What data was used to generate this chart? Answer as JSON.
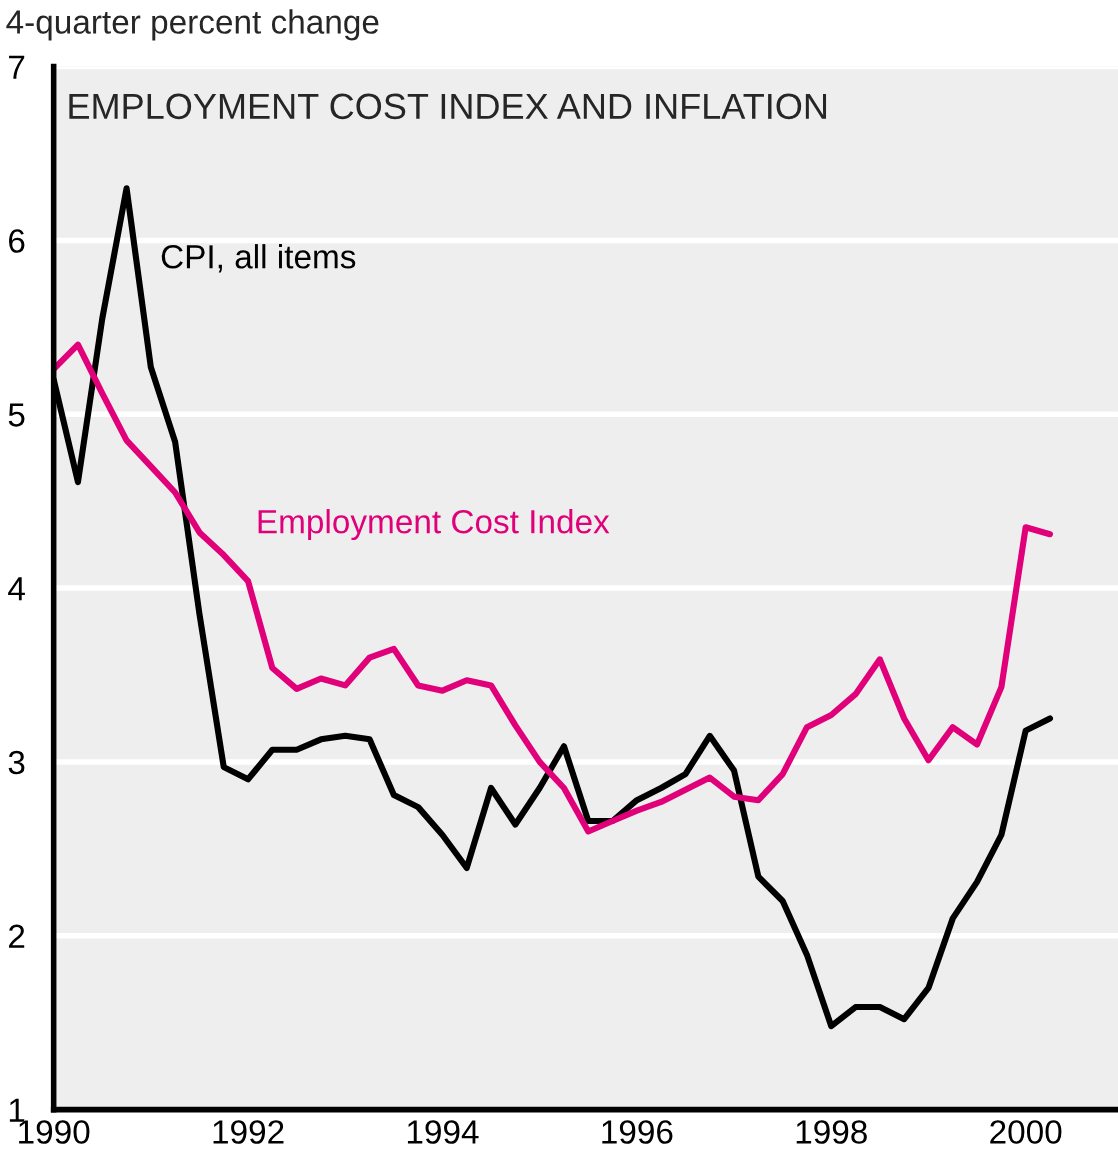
{
  "chart_data": {
    "type": "line",
    "title": "EMPLOYMENT COST INDEX AND INFLATION",
    "ylabel": "4-quarter percent change",
    "x": [
      1990,
      1990.25,
      1990.5,
      1990.75,
      1991,
      1991.25,
      1991.5,
      1991.75,
      1992,
      1992.25,
      1992.5,
      1992.75,
      1993,
      1993.25,
      1993.5,
      1993.75,
      1994,
      1994.25,
      1994.5,
      1994.75,
      1995,
      1995.25,
      1995.5,
      1995.75,
      1996,
      1996.25,
      1996.5,
      1996.75,
      1997,
      1997.25,
      1997.5,
      1997.75,
      1998,
      1998.25,
      1998.5,
      1998.75,
      1999,
      1999.25,
      1999.5,
      1999.75,
      2000,
      2000.25
    ],
    "series": [
      {
        "name": "CPI, all items",
        "color": "#000000",
        "values": [
          5.2,
          4.61,
          5.55,
          6.3,
          5.27,
          4.84,
          3.85,
          2.97,
          2.9,
          3.07,
          3.07,
          3.13,
          3.15,
          3.13,
          2.81,
          2.74,
          2.58,
          2.39,
          2.85,
          2.64,
          2.85,
          3.09,
          2.66,
          2.66,
          2.78,
          2.85,
          2.93,
          3.15,
          2.95,
          2.34,
          2.2,
          1.89,
          1.48,
          1.59,
          1.59,
          1.52,
          1.7,
          2.1,
          2.31,
          2.58,
          3.18,
          3.25
        ]
      },
      {
        "name": "Employment Cost Index",
        "color": "#e0007a",
        "values": [
          5.26,
          5.4,
          5.12,
          4.85,
          4.7,
          4.55,
          4.32,
          4.19,
          4.04,
          3.54,
          3.42,
          3.48,
          3.44,
          3.6,
          3.65,
          3.44,
          3.41,
          3.47,
          3.44,
          3.21,
          3.0,
          2.85,
          2.6,
          2.66,
          2.72,
          2.77,
          2.84,
          2.91,
          2.8,
          2.78,
          2.93,
          3.2,
          3.27,
          3.39,
          3.59,
          3.25,
          3.01,
          3.2,
          3.1,
          3.43,
          4.35,
          4.31
        ]
      }
    ],
    "xlim": [
      1990,
      2000.95
    ],
    "xticks": [
      1990,
      1992,
      1994,
      1996,
      1998,
      2000
    ],
    "ylim": [
      1,
      7
    ],
    "yticks": [
      1,
      2,
      3,
      4,
      5,
      6,
      7
    ],
    "grid": "y",
    "legend": false,
    "marker": "none",
    "line_style": "solid"
  }
}
